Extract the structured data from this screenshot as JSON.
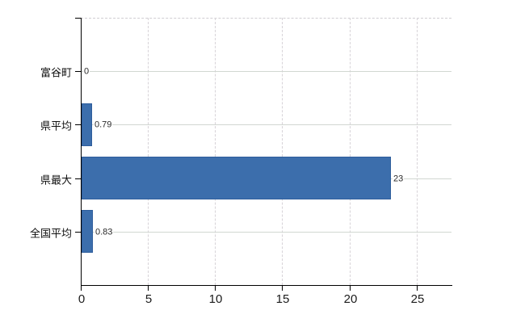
{
  "chart_data": {
    "type": "bar",
    "orientation": "horizontal",
    "title": "",
    "xlabel": "",
    "ylabel": "",
    "categories": [
      "富谷町",
      "県平均",
      "県最大",
      "全国平均"
    ],
    "values": [
      0,
      0.79,
      23,
      0.83
    ],
    "value_labels": [
      "0",
      "0.79",
      "23",
      "0.83"
    ],
    "x_tick_values": [
      0,
      5,
      10,
      15,
      20,
      25
    ],
    "x_tick_labels": [
      "0",
      "5",
      "10",
      "15",
      "20",
      "25"
    ],
    "xlim": [
      0,
      27.6
    ],
    "legend_position": "none",
    "grid": {
      "vertical": "dashed",
      "horizontal": "solid at category rows",
      "top_border": "dashed"
    }
  },
  "colors": {
    "background": "#ffffff",
    "bar_fill": "#3c6eac",
    "bar_border": "#2e5d9c",
    "axis_line": "#000000",
    "horizontal_gridline": "#d2d7d2",
    "vertical_gridline": "#d7d3d8",
    "plot_top_border": "#d0cdd2",
    "category_label": "#111111",
    "x_tick_label": "#1c1c1c",
    "value_label": "#2b2b2b"
  }
}
